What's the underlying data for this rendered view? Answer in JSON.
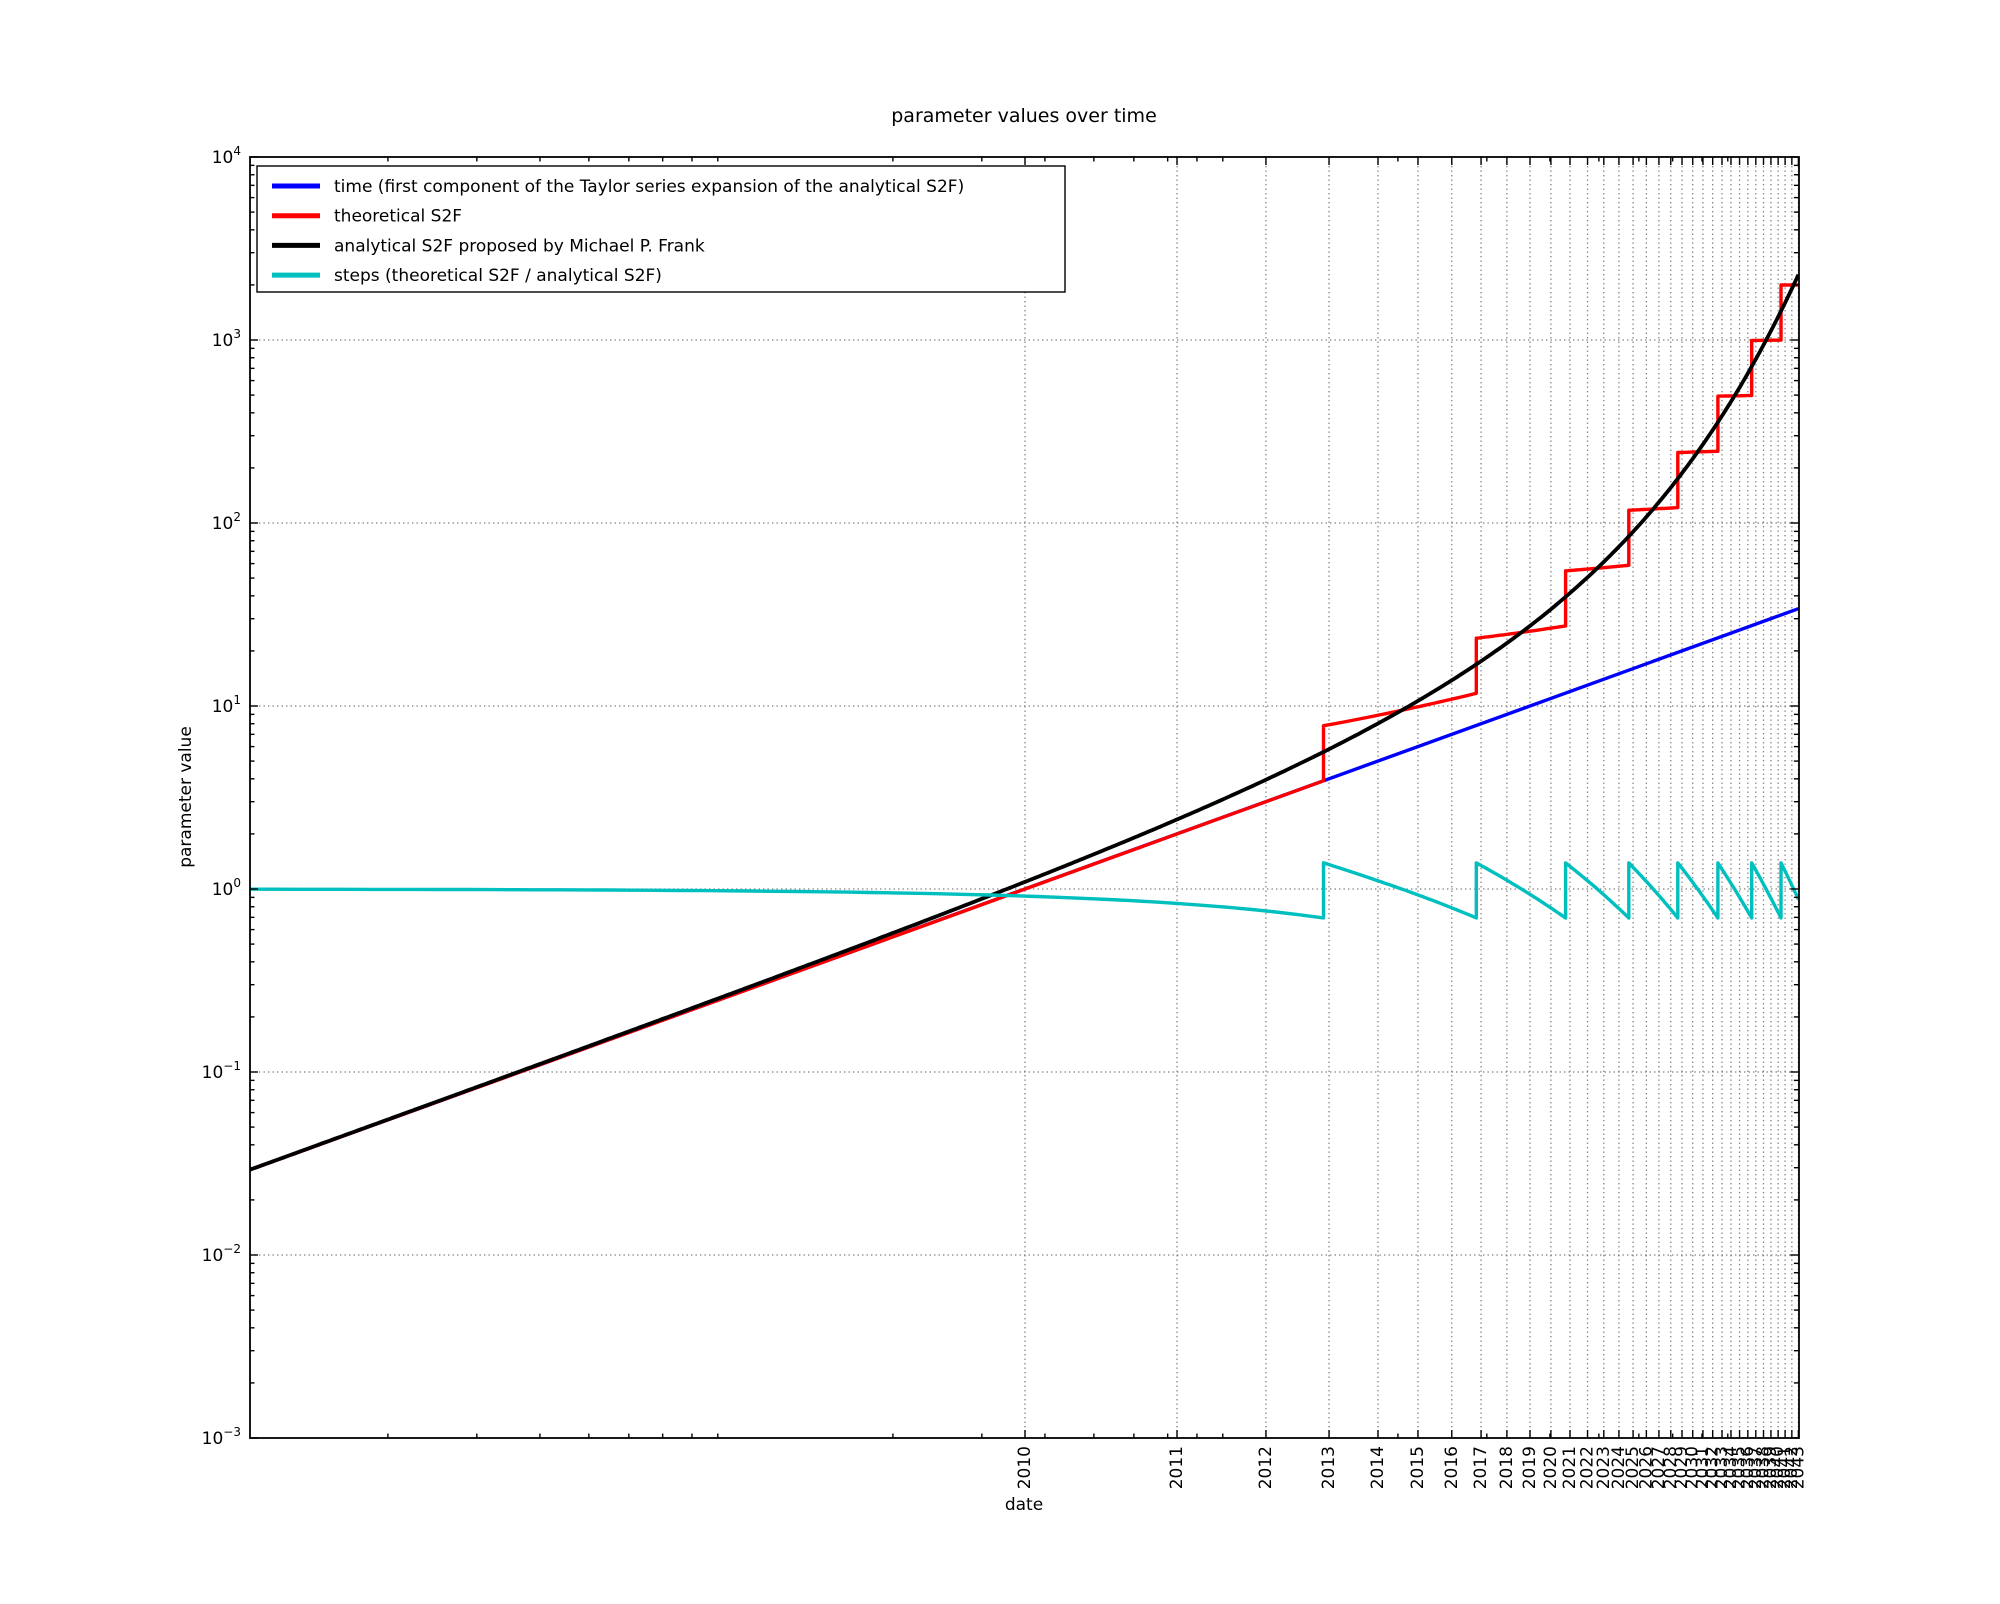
{
  "title": "parameter values over time",
  "axes": {
    "xlabel": "date",
    "ylabel": "parameter value",
    "x_scale": "logarithmic in years since 2009-01",
    "y_scale": "logarithmic",
    "x_start_year_decimal": 2009.03,
    "x_end_year_decimal": 2043.0,
    "y_min": 0.001,
    "y_max": 10000,
    "grid_style": "dotted",
    "x_tick_years": [
      2010,
      2011,
      2012,
      2013,
      2014,
      2015,
      2016,
      2017,
      2018,
      2019,
      2020,
      2021,
      2022,
      2023,
      2024,
      2025,
      2026,
      2027,
      2028,
      2029,
      2030,
      2031,
      2032,
      2033,
      2034,
      2035,
      2036,
      2037,
      2038,
      2039,
      2040,
      2041,
      2042,
      2043
    ],
    "y_tick_exponents": [
      4,
      3,
      2,
      1,
      0,
      -1,
      -2,
      -3
    ],
    "y_tick_labels": [
      "10^4",
      "10^3",
      "10^2",
      "10^1",
      "10^0",
      "10^-1",
      "10^-2",
      "10^-3"
    ]
  },
  "legend": {
    "position": "upper left",
    "items": [
      {
        "label": "time (first component of the Taylor series expansion of the analytical S2F)",
        "color": "#0000ff"
      },
      {
        "label": "theoretical S2F",
        "color": "#ff0000"
      },
      {
        "label": "analytical S2F proposed by Michael P. Frank",
        "color": "#000000"
      },
      {
        "label": "steps (theoretical S2F / analytical S2F)",
        "color": "#00bfbf"
      }
    ]
  },
  "chart_data": {
    "type": "line",
    "title": "parameter values over time",
    "xlabel": "date",
    "ylabel": "parameter value",
    "x_axis": {
      "scale": "log(years since 2009)",
      "min_year": 2009.03,
      "max_year": 2043.0
    },
    "y_axis": {
      "scale": "log",
      "min": 0.001,
      "max": 10000,
      "ticks": [
        10000,
        1000,
        100,
        10,
        1,
        0.1,
        0.01,
        0.001
      ]
    },
    "halving_period_years": 3.93,
    "first_halving_t": 3.9,
    "series": [
      {
        "name": "time (first component of the Taylor series expansion of the analytical S2F)",
        "color": "#0000ff",
        "model": "t",
        "endpoints_t_v": [
          [
            0.0292,
            0.0292
          ],
          [
            34.0,
            34.0
          ]
        ]
      },
      {
        "name": "theoretical S2F",
        "color": "#ff0000",
        "model": "staircase",
        "halving_years": [
          2012.9,
          2016.83,
          2020.76,
          2024.69,
          2028.62,
          2032.55,
          2036.48,
          2040.41
        ],
        "halving_t": [
          3.9,
          7.83,
          11.76,
          15.69,
          19.62,
          23.55,
          27.48,
          31.41
        ],
        "value_before_jump": [
          3.9,
          11.73,
          27.39,
          58.71,
          121.35,
          246.63,
          497.19,
          998.31
        ],
        "value_after_jump": [
          7.8,
          23.46,
          54.78,
          117.42,
          242.7,
          493.26,
          994.38,
          1996.62
        ],
        "value_at_right_edge": 1999.2
      },
      {
        "name": "analytical S2F proposed by Michael P. Frank",
        "color": "#000000",
        "model": "(T/ln2)*(2^(t/T)-1)",
        "T_years": 3.93,
        "value_at_left_edge": 0.029,
        "value_at_right_edge": 2280
      },
      {
        "name": "steps (theoretical S2F / analytical S2F)",
        "color": "#00bfbf",
        "model": "theoretical/analytical",
        "sawtooth_low": 0.695,
        "sawtooth_high": 1.39,
        "value_at_left_edge": 1.0,
        "value_at_right_edge": 0.878
      }
    ]
  },
  "colors": {
    "background": "#ffffff",
    "grid": "#6f6f6f",
    "axis": "#000000",
    "series_time": "#0000ff",
    "series_theoretical": "#ff0000",
    "series_analytical": "#000000",
    "series_steps": "#00bfbf"
  }
}
